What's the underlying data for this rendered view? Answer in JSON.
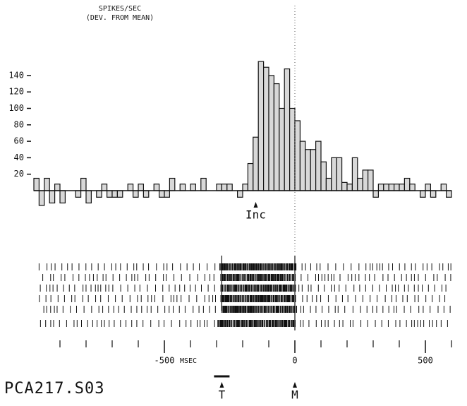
{
  "chart_data": {
    "type": "histogram",
    "title": "SPIKES/SEC",
    "subtitle": "(DEV. FROM MEAN)",
    "x_label": "MSEC",
    "id_label": "PCA217.S03",
    "bins": [
      -1000,
      -980,
      -960,
      -940,
      -920,
      -900,
      -880,
      -860,
      -840,
      -820,
      -800,
      -780,
      -760,
      -740,
      -720,
      -700,
      -680,
      -660,
      -640,
      -620,
      -600,
      -580,
      -560,
      -540,
      -520,
      -500,
      -480,
      -460,
      -440,
      -420,
      -400,
      -380,
      -360,
      -340,
      -320,
      -300,
      -280,
      -260,
      -240,
      -220,
      -200,
      -180,
      -160,
      -140,
      -120,
      -100,
      -80,
      -60,
      -40,
      -20,
      0,
      20,
      40,
      60,
      80,
      100,
      120,
      140,
      160,
      180,
      200,
      220,
      240,
      260,
      280,
      300,
      320,
      340,
      360,
      380,
      400,
      420,
      440,
      460,
      480,
      500,
      520,
      540,
      560,
      580,
      600
    ],
    "values": [
      15,
      -18,
      15,
      -15,
      8,
      -15,
      0,
      0,
      -8,
      15,
      -15,
      0,
      -8,
      8,
      -8,
      -8,
      -8,
      0,
      8,
      -8,
      8,
      -8,
      0,
      8,
      -8,
      -8,
      15,
      0,
      8,
      0,
      8,
      0,
      15,
      0,
      0,
      8,
      8,
      8,
      0,
      -8,
      8,
      33,
      65,
      157,
      150,
      140,
      130,
      100,
      148,
      100,
      85,
      60,
      50,
      50,
      60,
      35,
      15,
      40,
      40,
      10,
      8,
      40,
      15,
      25,
      25,
      -8,
      8,
      8,
      8,
      8,
      8,
      15,
      8,
      0,
      -8,
      8,
      -8,
      0,
      8,
      -8
    ],
    "color": "#d8d8d8",
    "xlim": [
      -1000,
      600
    ],
    "ylim": [
      -20,
      160
    ],
    "yticks": [
      20,
      40,
      60,
      80,
      100,
      120,
      140
    ],
    "xticks": [
      -500,
      0,
      500
    ],
    "xminorticks": [
      -900,
      -800,
      -700,
      -600,
      -400,
      -300,
      -200,
      -100,
      100,
      200,
      300,
      400,
      600
    ],
    "annotations": [
      {
        "text": "Inc",
        "x": -150
      },
      {
        "text": "T",
        "x": -280
      },
      {
        "text": "M",
        "x": 0
      }
    ]
  }
}
